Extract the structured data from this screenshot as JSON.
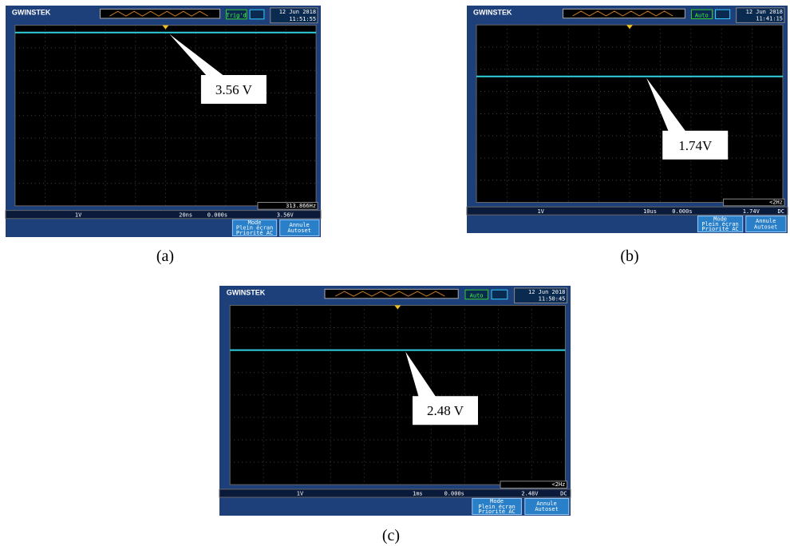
{
  "panels": [
    {
      "brand": "GWINSTEK",
      "status": "Trig'd",
      "date": "12 Jun 2018",
      "time": "11:51:55",
      "frequency": "313.866Hz",
      "channel_scale": "1V",
      "timebase": "20ns",
      "delay": "0.000s",
      "trigger_level": "3.56V",
      "mode": "Mode",
      "mode_value": "Plein écran",
      "mode_sub": "Priorité AC",
      "cancel": "Annule",
      "cancel_sub": "Autoset",
      "callout": "3.56 V",
      "caption": "(a)"
    },
    {
      "brand": "GWINSTEK",
      "status": "Auto",
      "date": "12 Jun 2018",
      "time": "11:41:15",
      "frequency": "<2Hz",
      "channel_scale": "1V",
      "timebase": "10us",
      "delay": "0.000s",
      "trigger_level": "1.74V",
      "coupling": "DC",
      "mode": "Mode",
      "mode_value": "Plein écran",
      "mode_sub": "Priorité AC",
      "cancel": "Annule",
      "cancel_sub": "Autoset",
      "callout": "1.74V",
      "caption": "(b)"
    },
    {
      "brand": "GWINSTEK",
      "status": "Auto",
      "date": "12 Jun 2018",
      "time": "11:50:45",
      "frequency": "<2Hz",
      "channel_scale": "1V",
      "timebase": "1ms",
      "delay": "0.000s",
      "trigger_level": "2.48V",
      "coupling": "DC",
      "mode": "Mode",
      "mode_value": "Plein écran",
      "mode_sub": "Priorité AC",
      "cancel": "Annule",
      "cancel_sub": "Autoset",
      "callout": "2.48 V",
      "caption": "(c)"
    }
  ]
}
